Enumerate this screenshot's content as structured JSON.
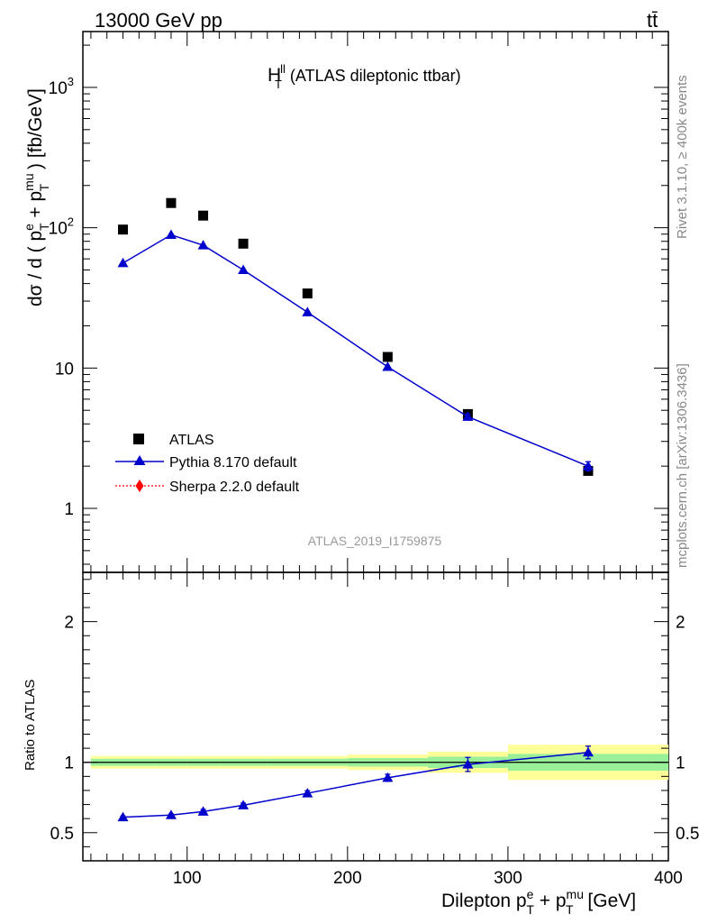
{
  "header": {
    "left": "13000 GeV pp",
    "right": "tt̄"
  },
  "plot_title": {
    "main": "H",
    "sup": "ll",
    "sub": "T",
    "rest": " (ATLAS dileptonic ttbar)"
  },
  "side_text": {
    "rivet": "Rivet 3.1.10, ≥ 400k events",
    "mcplots": "mcplots.cern.ch [arXiv:1306.3436]"
  },
  "watermark": "ATLAS_2019_I1759875",
  "legend": {
    "atlas": "ATLAS",
    "pythia": "Pythia 8.170 default",
    "sherpa": "Sherpa 2.2.0 default"
  },
  "colors": {
    "data": "#000000",
    "pythia": "#0000cc",
    "sherpa": "#ff0000",
    "band_inner": "#99f099",
    "band_outer": "#ffff99"
  },
  "chart_data": [
    {
      "type": "scatter",
      "panel": "main",
      "scale": "log",
      "xlim": [
        35,
        400
      ],
      "ylim": [
        0.35,
        2500
      ],
      "ylabel_parts": {
        "lead": "dσ / d ( p",
        "sup1": "e",
        "sub1": "T",
        "mid": " + p",
        "sup2": "mu",
        "sub2": "T",
        "tail": " ) [fb/GeV]"
      },
      "yticks": [
        {
          "value": 1,
          "label": "1"
        },
        {
          "value": 10,
          "label": "10"
        },
        {
          "value": 100,
          "label": "10",
          "exp": "2"
        },
        {
          "value": 1000,
          "label": "10",
          "exp": "3"
        }
      ],
      "series": [
        {
          "name": "ATLAS",
          "x": [
            60,
            90,
            110,
            135,
            175,
            225,
            275,
            350
          ],
          "y": [
            97,
            150,
            122,
            77,
            34,
            12,
            4.7,
            1.85
          ]
        },
        {
          "name": "Pythia 8.170 default",
          "x": [
            60,
            90,
            110,
            135,
            175,
            225,
            275,
            350
          ],
          "y": [
            56,
            89,
            75,
            50,
            25,
            10.2,
            4.5,
            2.0
          ],
          "yerr": [
            0,
            0,
            0,
            0,
            0,
            0,
            0.2,
            0.15
          ]
        }
      ]
    },
    {
      "type": "line",
      "panel": "ratio",
      "ylim": [
        0.3,
        2.35
      ],
      "xlabel_parts": {
        "lead": "Dilepton p",
        "sup1": "e",
        "sub1": "T",
        "mid": " + p",
        "sup2": "mu",
        "sub2": "T",
        "tail": " [GeV]"
      },
      "ylabel": "Ratio to ATLAS",
      "xticks": [
        {
          "value": 100,
          "label": "100"
        },
        {
          "value": 200,
          "label": "200"
        },
        {
          "value": 300,
          "label": "300"
        },
        {
          "value": 400,
          "label": "400"
        }
      ],
      "yticks": [
        {
          "value": 0.5,
          "label": "0.5"
        },
        {
          "value": 1,
          "label": "1"
        },
        {
          "value": 2,
          "label": "2"
        }
      ],
      "bands": [
        {
          "x0": 40,
          "x1": 80,
          "inner": [
            0.975,
            1.025
          ],
          "outer": [
            0.955,
            1.045
          ]
        },
        {
          "x0": 80,
          "x1": 100,
          "inner": [
            0.975,
            1.025
          ],
          "outer": [
            0.955,
            1.045
          ]
        },
        {
          "x0": 100,
          "x1": 120,
          "inner": [
            0.975,
            1.025
          ],
          "outer": [
            0.955,
            1.045
          ]
        },
        {
          "x0": 120,
          "x1": 150,
          "inner": [
            0.975,
            1.025
          ],
          "outer": [
            0.955,
            1.045
          ]
        },
        {
          "x0": 150,
          "x1": 200,
          "inner": [
            0.975,
            1.025
          ],
          "outer": [
            0.955,
            1.045
          ]
        },
        {
          "x0": 200,
          "x1": 250,
          "inner": [
            0.97,
            1.03
          ],
          "outer": [
            0.945,
            1.055
          ]
        },
        {
          "x0": 250,
          "x1": 300,
          "inner": [
            0.96,
            1.04
          ],
          "outer": [
            0.925,
            1.075
          ]
        },
        {
          "x0": 300,
          "x1": 400,
          "inner": [
            0.94,
            1.06
          ],
          "outer": [
            0.875,
            1.125
          ]
        }
      ],
      "series": [
        {
          "name": "Pythia 8.170 default",
          "x": [
            60,
            90,
            110,
            135,
            175,
            225,
            275,
            350
          ],
          "y": [
            0.61,
            0.625,
            0.65,
            0.695,
            0.78,
            0.89,
            0.985,
            1.07
          ],
          "yerr": [
            0.008,
            0.008,
            0.015,
            0.015,
            0.018,
            0.025,
            0.05,
            0.045
          ]
        }
      ]
    }
  ]
}
